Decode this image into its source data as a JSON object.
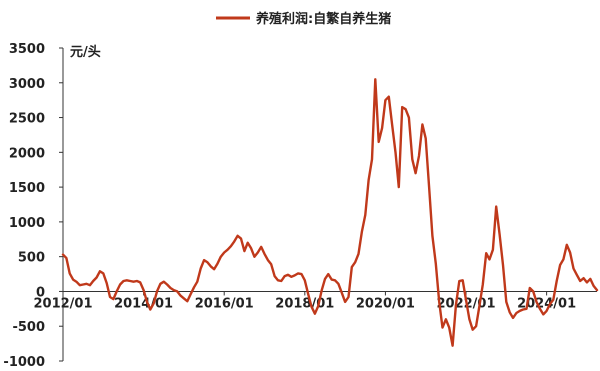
{
  "chart_data": {
    "type": "line",
    "ylabel": "元/头",
    "ylim": [
      -1000,
      3500
    ],
    "yticks": [
      3500,
      3000,
      2500,
      2000,
      1500,
      1000,
      500,
      0,
      -500,
      -1000
    ],
    "xlim": [
      "2012-01",
      "2025-04"
    ],
    "xticks": [
      {
        "label": "2012/01",
        "x": "2012-01"
      },
      {
        "label": "2014/01",
        "x": "2014-01"
      },
      {
        "label": "2016/01",
        "x": "2016-01"
      },
      {
        "label": "2018/01",
        "x": "2018-01"
      },
      {
        "label": "2020/01",
        "x": "2020-01"
      },
      {
        "label": "2022/01",
        "x": "2022-01"
      },
      {
        "label": "2024/01",
        "x": "2024-01"
      }
    ],
    "legend_position": "top-center",
    "grid": false,
    "series": [
      {
        "name": "养殖利润:自繁自养生猪",
        "color": "#c0391b",
        "points": [
          [
            "2012-01",
            530
          ],
          [
            "2012-02",
            480
          ],
          [
            "2012-03",
            260
          ],
          [
            "2012-04",
            170
          ],
          [
            "2012-05",
            140
          ],
          [
            "2012-06",
            90
          ],
          [
            "2012-07",
            100
          ],
          [
            "2012-08",
            110
          ],
          [
            "2012-09",
            90
          ],
          [
            "2012-10",
            150
          ],
          [
            "2012-11",
            200
          ],
          [
            "2012-12",
            290
          ],
          [
            "2013-01",
            260
          ],
          [
            "2013-02",
            120
          ],
          [
            "2013-03",
            -80
          ],
          [
            "2013-04",
            -110
          ],
          [
            "2013-05",
            0
          ],
          [
            "2013-06",
            100
          ],
          [
            "2013-07",
            150
          ],
          [
            "2013-08",
            160
          ],
          [
            "2013-09",
            150
          ],
          [
            "2013-10",
            140
          ],
          [
            "2013-11",
            150
          ],
          [
            "2013-12",
            130
          ],
          [
            "2014-01",
            20
          ],
          [
            "2014-02",
            -150
          ],
          [
            "2014-03",
            -260
          ],
          [
            "2014-04",
            -170
          ],
          [
            "2014-05",
            0
          ],
          [
            "2014-06",
            110
          ],
          [
            "2014-07",
            140
          ],
          [
            "2014-08",
            100
          ],
          [
            "2014-09",
            50
          ],
          [
            "2014-10",
            20
          ],
          [
            "2014-11",
            0
          ],
          [
            "2014-12",
            -60
          ],
          [
            "2015-01",
            -100
          ],
          [
            "2015-02",
            -140
          ],
          [
            "2015-03",
            -40
          ],
          [
            "2015-04",
            60
          ],
          [
            "2015-05",
            140
          ],
          [
            "2015-06",
            330
          ],
          [
            "2015-07",
            450
          ],
          [
            "2015-08",
            420
          ],
          [
            "2015-09",
            360
          ],
          [
            "2015-10",
            320
          ],
          [
            "2015-11",
            400
          ],
          [
            "2015-12",
            500
          ],
          [
            "2016-01",
            560
          ],
          [
            "2016-02",
            600
          ],
          [
            "2016-03",
            650
          ],
          [
            "2016-04",
            720
          ],
          [
            "2016-05",
            800
          ],
          [
            "2016-06",
            760
          ],
          [
            "2016-07",
            580
          ],
          [
            "2016-08",
            700
          ],
          [
            "2016-09",
            620
          ],
          [
            "2016-10",
            500
          ],
          [
            "2016-11",
            560
          ],
          [
            "2016-12",
            640
          ],
          [
            "2017-01",
            540
          ],
          [
            "2017-02",
            450
          ],
          [
            "2017-03",
            390
          ],
          [
            "2017-04",
            220
          ],
          [
            "2017-05",
            160
          ],
          [
            "2017-06",
            150
          ],
          [
            "2017-07",
            220
          ],
          [
            "2017-08",
            240
          ],
          [
            "2017-09",
            210
          ],
          [
            "2017-10",
            230
          ],
          [
            "2017-11",
            260
          ],
          [
            "2017-12",
            250
          ],
          [
            "2018-01",
            160
          ],
          [
            "2018-02",
            -40
          ],
          [
            "2018-03",
            -220
          ],
          [
            "2018-04",
            -320
          ],
          [
            "2018-05",
            -210
          ],
          [
            "2018-06",
            10
          ],
          [
            "2018-07",
            180
          ],
          [
            "2018-08",
            250
          ],
          [
            "2018-09",
            170
          ],
          [
            "2018-10",
            160
          ],
          [
            "2018-11",
            110
          ],
          [
            "2018-12",
            -20
          ],
          [
            "2019-01",
            -150
          ],
          [
            "2019-02",
            -80
          ],
          [
            "2019-03",
            350
          ],
          [
            "2019-04",
            420
          ],
          [
            "2019-05",
            540
          ],
          [
            "2019-06",
            860
          ],
          [
            "2019-07",
            1100
          ],
          [
            "2019-08",
            1600
          ],
          [
            "2019-09",
            1900
          ],
          [
            "2019-10",
            3050
          ],
          [
            "2019-11",
            2150
          ],
          [
            "2019-12",
            2350
          ],
          [
            "2020-01",
            2750
          ],
          [
            "2020-02",
            2800
          ],
          [
            "2020-03",
            2400
          ],
          [
            "2020-04",
            2000
          ],
          [
            "2020-05",
            1500
          ],
          [
            "2020-06",
            2650
          ],
          [
            "2020-07",
            2620
          ],
          [
            "2020-08",
            2500
          ],
          [
            "2020-09",
            1900
          ],
          [
            "2020-10",
            1700
          ],
          [
            "2020-11",
            1950
          ],
          [
            "2020-12",
            2400
          ],
          [
            "2021-01",
            2200
          ],
          [
            "2021-02",
            1500
          ],
          [
            "2021-03",
            800
          ],
          [
            "2021-04",
            400
          ],
          [
            "2021-05",
            -150
          ],
          [
            "2021-06",
            -520
          ],
          [
            "2021-07",
            -400
          ],
          [
            "2021-08",
            -520
          ],
          [
            "2021-09",
            -780
          ],
          [
            "2021-10",
            -200
          ],
          [
            "2021-11",
            150
          ],
          [
            "2021-12",
            160
          ],
          [
            "2022-01",
            -120
          ],
          [
            "2022-02",
            -400
          ],
          [
            "2022-03",
            -550
          ],
          [
            "2022-04",
            -500
          ],
          [
            "2022-05",
            -200
          ],
          [
            "2022-06",
            100
          ],
          [
            "2022-07",
            550
          ],
          [
            "2022-08",
            460
          ],
          [
            "2022-09",
            600
          ],
          [
            "2022-10",
            1220
          ],
          [
            "2022-11",
            820
          ],
          [
            "2022-12",
            380
          ],
          [
            "2023-01",
            -150
          ],
          [
            "2023-02",
            -300
          ],
          [
            "2023-03",
            -380
          ],
          [
            "2023-04",
            -310
          ],
          [
            "2023-05",
            -280
          ],
          [
            "2023-06",
            -260
          ],
          [
            "2023-07",
            -250
          ],
          [
            "2023-08",
            50
          ],
          [
            "2023-09",
            0
          ],
          [
            "2023-10",
            -150
          ],
          [
            "2023-11",
            -250
          ],
          [
            "2023-12",
            -330
          ],
          [
            "2024-01",
            -280
          ],
          [
            "2024-02",
            -180
          ],
          [
            "2024-03",
            -120
          ],
          [
            "2024-04",
            150
          ],
          [
            "2024-05",
            380
          ],
          [
            "2024-06",
            460
          ],
          [
            "2024-07",
            670
          ],
          [
            "2024-08",
            560
          ],
          [
            "2024-09",
            330
          ],
          [
            "2024-10",
            240
          ],
          [
            "2024-11",
            150
          ],
          [
            "2024-12",
            190
          ],
          [
            "2025-01",
            130
          ],
          [
            "2025-02",
            180
          ],
          [
            "2025-03",
            80
          ],
          [
            "2025-04",
            20
          ]
        ]
      }
    ]
  }
}
